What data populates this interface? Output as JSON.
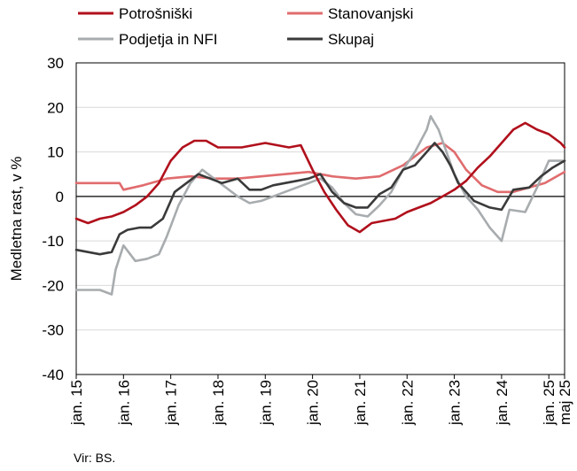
{
  "chart_data": {
    "type": "line",
    "ylabel": "Medletna rast, v %",
    "ylim": [
      -40,
      30
    ],
    "y_ticks": [
      30,
      20,
      10,
      0,
      -10,
      -20,
      -30,
      -40
    ],
    "x_tick_labels": [
      "jan. 15",
      "jan. 16",
      "jan. 17",
      "jan. 18",
      "jan. 19",
      "jan. 20",
      "jan. 21",
      "jan. 22",
      "jan. 23",
      "jan. 24",
      "jan. 25",
      "maj 25"
    ],
    "x_tick_dates": [
      "2015-01",
      "2016-01",
      "2017-01",
      "2018-01",
      "2019-01",
      "2020-01",
      "2021-01",
      "2022-01",
      "2023-01",
      "2024-01",
      "2025-01",
      "2025-05"
    ],
    "xlim": [
      "2015-01",
      "2025-05"
    ],
    "legend_position": "top",
    "grid": true,
    "source": "Vir: BS.",
    "series": [
      {
        "name": "Potrošniški",
        "color": "#b0101c",
        "points": [
          [
            "2015-01",
            -5
          ],
          [
            "2015-04",
            -6
          ],
          [
            "2015-07",
            -5
          ],
          [
            "2015-10",
            -4.5
          ],
          [
            "2016-01",
            -3.5
          ],
          [
            "2016-04",
            -2
          ],
          [
            "2016-07",
            0
          ],
          [
            "2016-10",
            3
          ],
          [
            "2017-01",
            8
          ],
          [
            "2017-04",
            11
          ],
          [
            "2017-07",
            12.5
          ],
          [
            "2017-10",
            12.5
          ],
          [
            "2018-01",
            11
          ],
          [
            "2018-04",
            11
          ],
          [
            "2018-07",
            11
          ],
          [
            "2018-10",
            11.5
          ],
          [
            "2019-01",
            12
          ],
          [
            "2019-04",
            11.5
          ],
          [
            "2019-07",
            11
          ],
          [
            "2019-10",
            11.5
          ],
          [
            "2020-01",
            6
          ],
          [
            "2020-04",
            1
          ],
          [
            "2020-07",
            -3
          ],
          [
            "2020-10",
            -6.5
          ],
          [
            "2021-01",
            -8
          ],
          [
            "2021-04",
            -6
          ],
          [
            "2021-07",
            -5.5
          ],
          [
            "2021-10",
            -5
          ],
          [
            "2022-01",
            -3.5
          ],
          [
            "2022-04",
            -2.5
          ],
          [
            "2022-07",
            -1.5
          ],
          [
            "2022-10",
            0
          ],
          [
            "2023-01",
            1.5
          ],
          [
            "2023-04",
            3.5
          ],
          [
            "2023-07",
            6.5
          ],
          [
            "2023-10",
            9
          ],
          [
            "2024-01",
            12
          ],
          [
            "2024-04",
            15
          ],
          [
            "2024-07",
            16.5
          ],
          [
            "2024-10",
            15
          ],
          [
            "2025-01",
            14
          ],
          [
            "2025-04",
            12
          ],
          [
            "2025-05",
            11
          ]
        ]
      },
      {
        "name": "Stanovanjski",
        "color": "#e06c6e",
        "points": [
          [
            "2015-01",
            3
          ],
          [
            "2015-06",
            3
          ],
          [
            "2015-12",
            3
          ],
          [
            "2016-01",
            1.5
          ],
          [
            "2016-06",
            2.5
          ],
          [
            "2016-12",
            4
          ],
          [
            "2017-06",
            4.5
          ],
          [
            "2017-12",
            4
          ],
          [
            "2018-06",
            4
          ],
          [
            "2018-12",
            4.5
          ],
          [
            "2019-06",
            5
          ],
          [
            "2019-12",
            5.5
          ],
          [
            "2020-06",
            4.5
          ],
          [
            "2020-12",
            4
          ],
          [
            "2021-06",
            4.5
          ],
          [
            "2021-12",
            7
          ],
          [
            "2022-06",
            11
          ],
          [
            "2022-10",
            12
          ],
          [
            "2023-01",
            10
          ],
          [
            "2023-04",
            6
          ],
          [
            "2023-08",
            2.5
          ],
          [
            "2023-12",
            1
          ],
          [
            "2024-04",
            1
          ],
          [
            "2024-08",
            2
          ],
          [
            "2024-12",
            3
          ],
          [
            "2025-05",
            5.5
          ]
        ]
      },
      {
        "name": "Podjetja in NFI",
        "color": "#a8acae",
        "points": [
          [
            "2015-01",
            -21
          ],
          [
            "2015-04",
            -21
          ],
          [
            "2015-07",
            -21
          ],
          [
            "2015-10",
            -22
          ],
          [
            "2015-11",
            -16.5
          ],
          [
            "2016-01",
            -11
          ],
          [
            "2016-04",
            -14.5
          ],
          [
            "2016-07",
            -14
          ],
          [
            "2016-10",
            -13
          ],
          [
            "2016-12",
            -9
          ],
          [
            "2017-03",
            -2
          ],
          [
            "2017-06",
            3
          ],
          [
            "2017-09",
            6
          ],
          [
            "2017-12",
            4
          ],
          [
            "2018-03",
            2
          ],
          [
            "2018-06",
            0
          ],
          [
            "2018-09",
            -1.5
          ],
          [
            "2018-12",
            -1
          ],
          [
            "2019-03",
            0
          ],
          [
            "2019-06",
            1
          ],
          [
            "2019-09",
            2
          ],
          [
            "2019-12",
            3
          ],
          [
            "2020-03",
            4
          ],
          [
            "2020-06",
            2
          ],
          [
            "2020-09",
            -1.5
          ],
          [
            "2020-12",
            -4
          ],
          [
            "2021-03",
            -4.5
          ],
          [
            "2021-06",
            -2
          ],
          [
            "2021-09",
            1
          ],
          [
            "2021-12",
            6
          ],
          [
            "2022-03",
            10
          ],
          [
            "2022-06",
            15
          ],
          [
            "2022-07",
            18
          ],
          [
            "2022-09",
            15
          ],
          [
            "2022-11",
            10
          ],
          [
            "2023-01",
            5
          ],
          [
            "2023-04",
            0
          ],
          [
            "2023-07",
            -3
          ],
          [
            "2023-10",
            -7
          ],
          [
            "2024-01",
            -10
          ],
          [
            "2024-03",
            -3
          ],
          [
            "2024-07",
            -3.5
          ],
          [
            "2024-10",
            2
          ],
          [
            "2025-01",
            8
          ],
          [
            "2025-05",
            8
          ]
        ]
      },
      {
        "name": "Skupaj",
        "color": "#3a3a3a",
        "points": [
          [
            "2015-01",
            -12
          ],
          [
            "2015-04",
            -12.5
          ],
          [
            "2015-07",
            -13
          ],
          [
            "2015-10",
            -12.5
          ],
          [
            "2015-12",
            -8.5
          ],
          [
            "2016-02",
            -7.5
          ],
          [
            "2016-05",
            -7
          ],
          [
            "2016-08",
            -7
          ],
          [
            "2016-11",
            -5
          ],
          [
            "2017-02",
            1
          ],
          [
            "2017-05",
            3
          ],
          [
            "2017-08",
            5
          ],
          [
            "2017-11",
            4
          ],
          [
            "2018-02",
            3
          ],
          [
            "2018-06",
            4
          ],
          [
            "2018-09",
            1.5
          ],
          [
            "2018-12",
            1.5
          ],
          [
            "2019-03",
            2.5
          ],
          [
            "2019-06",
            3
          ],
          [
            "2019-09",
            3.5
          ],
          [
            "2019-12",
            4
          ],
          [
            "2020-03",
            5
          ],
          [
            "2020-06",
            1
          ],
          [
            "2020-09",
            -1.5
          ],
          [
            "2020-12",
            -2.5
          ],
          [
            "2021-03",
            -2.5
          ],
          [
            "2021-06",
            0.5
          ],
          [
            "2021-09",
            2
          ],
          [
            "2021-12",
            6
          ],
          [
            "2022-03",
            7
          ],
          [
            "2022-06",
            10
          ],
          [
            "2022-08",
            12
          ],
          [
            "2022-10",
            10
          ],
          [
            "2022-12",
            7
          ],
          [
            "2023-02",
            3
          ],
          [
            "2023-06",
            -1
          ],
          [
            "2023-10",
            -2.5
          ],
          [
            "2024-01",
            -3
          ],
          [
            "2024-04",
            1.5
          ],
          [
            "2024-08",
            2
          ],
          [
            "2024-11",
            4.5
          ],
          [
            "2025-02",
            6.5
          ],
          [
            "2025-05",
            8
          ]
        ]
      }
    ]
  }
}
